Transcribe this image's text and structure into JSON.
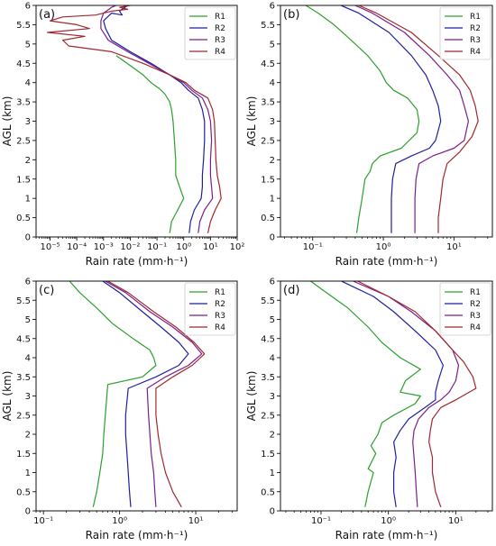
{
  "chart_data": [
    {
      "type": "line",
      "panel_label": "(a)",
      "xlabel": "Rain rate (mm·h⁻¹)",
      "ylabel": "AGL (km)",
      "xscale": "log",
      "xlim": [
        3e-06,
        100
      ],
      "ylim": [
        0,
        6
      ],
      "x_ticks": [
        1e-05,
        0.0001,
        0.001,
        0.01,
        0.1,
        1,
        10,
        100
      ],
      "x_tick_labels": [
        "10⁻⁵",
        "10⁻⁴",
        "10⁻³",
        "10⁻²",
        "10⁻¹",
        "10⁰",
        "10¹",
        "10²"
      ],
      "y_ticks": [
        0,
        0.5,
        1,
        1.5,
        2,
        2.5,
        3,
        3.5,
        4,
        4.5,
        5,
        5.5,
        6
      ],
      "y_tick_labels": [
        "0",
        "0.5",
        "1",
        "1.5",
        "2",
        "2.5",
        "3",
        "3.5",
        "4",
        "4.5",
        "5",
        "5.5",
        "6"
      ],
      "legend_position": "top-right",
      "series": [
        {
          "name": "R1",
          "color": "#2ca02c",
          "x": [
            0.3,
            0.35,
            0.6,
            1.0,
            0.7,
            0.5,
            0.5,
            0.45,
            0.4,
            0.35,
            0.3,
            0.2,
            0.12,
            0.06,
            0.03,
            0.012,
            0.006,
            0.003
          ],
          "y": [
            0.1,
            0.4,
            0.7,
            1.0,
            1.3,
            1.6,
            2.0,
            2.5,
            3.0,
            3.3,
            3.5,
            3.7,
            3.85,
            4.0,
            4.2,
            4.4,
            4.55,
            4.7
          ]
        },
        {
          "name": "R2",
          "color": "#1f1fa0",
          "x": [
            1.6,
            1.8,
            2.5,
            4.5,
            5.0,
            5.0,
            5.5,
            6.0,
            6.0,
            5.0,
            3.5,
            1.5,
            0.8,
            0.3,
            0.06,
            0.01,
            0.002,
            0.0012,
            0.001,
            0.002,
            0.005,
            0.004,
            0.006,
            0.008,
            0.005
          ],
          "y": [
            0.1,
            0.4,
            0.7,
            1.0,
            1.3,
            1.6,
            2.0,
            2.5,
            3.0,
            3.3,
            3.6,
            3.8,
            4.0,
            4.2,
            4.5,
            4.8,
            5.1,
            5.4,
            5.6,
            5.8,
            5.75,
            5.85,
            5.95,
            6.0,
            5.9
          ]
        },
        {
          "name": "R3",
          "color": "#7a1f8a",
          "x": [
            3.5,
            4.0,
            6.0,
            12.0,
            11.0,
            10.0,
            10.0,
            11.0,
            10.0,
            8.0,
            5.0,
            2.0,
            1.0,
            0.3,
            0.05,
            0.008,
            0.0015,
            0.0008,
            0.0008,
            0.001,
            0.002,
            0.003
          ],
          "y": [
            0.1,
            0.4,
            0.7,
            1.0,
            1.3,
            1.6,
            2.0,
            2.5,
            3.0,
            3.3,
            3.6,
            3.8,
            4.0,
            4.2,
            4.5,
            4.8,
            5.1,
            5.4,
            5.6,
            5.8,
            5.95,
            6.0
          ]
        },
        {
          "name": "R4",
          "color": "#a0282e",
          "x": [
            8,
            10,
            15,
            25,
            22,
            18,
            16,
            15,
            14,
            12,
            8,
            2.5,
            1.2,
            0.3,
            0.03,
            0.002,
            5e-05,
            3e-05,
            0.0002,
            8e-06,
            0.0003,
            0.0001,
            1e-05,
            3e-05,
            0.0005,
            0.002,
            0.008,
            0.004,
            0.01
          ],
          "y": [
            0.1,
            0.4,
            0.7,
            1.0,
            1.3,
            1.6,
            2.0,
            2.5,
            3.0,
            3.3,
            3.6,
            3.8,
            4.0,
            4.2,
            4.5,
            4.8,
            4.95,
            5.1,
            5.2,
            5.3,
            5.4,
            5.5,
            5.6,
            5.7,
            5.75,
            5.85,
            5.9,
            5.95,
            6.0
          ]
        }
      ]
    },
    {
      "type": "line",
      "panel_label": "(b)",
      "xlabel": "Rain rate (mm·h⁻¹)",
      "ylabel": "AGL (km)",
      "xscale": "log",
      "xlim": [
        0.035,
        35
      ],
      "ylim": [
        0,
        6
      ],
      "x_ticks": [
        0.1,
        1,
        10
      ],
      "x_tick_labels": [
        "10⁻¹",
        "10⁰",
        "10¹"
      ],
      "y_ticks": [
        0,
        0.5,
        1,
        1.5,
        2,
        2.5,
        3,
        3.5,
        4,
        4.5,
        5,
        5.5,
        6
      ],
      "y_tick_labels": [
        "0",
        "0.5",
        "1",
        "1.5",
        "2",
        "2.5",
        "3",
        "3.5",
        "4",
        "4.5",
        "5",
        "5.5",
        "6"
      ],
      "legend_position": "top-right",
      "series": [
        {
          "name": "R1",
          "color": "#2ca02c",
          "x": [
            0.42,
            0.45,
            0.5,
            0.55,
            0.65,
            0.7,
            0.9,
            1.8,
            3.0,
            3.2,
            3.0,
            2.2,
            1.4,
            1.1,
            0.9,
            0.6,
            0.35,
            0.2,
            0.12,
            0.08
          ],
          "y": [
            0.1,
            0.5,
            1.0,
            1.5,
            1.7,
            1.9,
            2.1,
            2.3,
            2.7,
            3.0,
            3.3,
            3.6,
            3.8,
            4.0,
            4.3,
            4.7,
            5.1,
            5.5,
            5.8,
            6.0
          ]
        },
        {
          "name": "R2",
          "color": "#1f1fa0",
          "x": [
            1.3,
            1.3,
            1.3,
            1.35,
            1.5,
            2.5,
            4.5,
            5.5,
            6.5,
            6.0,
            5.0,
            4.0,
            2.5,
            1.2,
            0.45,
            0.25
          ],
          "y": [
            0.1,
            0.5,
            1.0,
            1.5,
            1.9,
            2.1,
            2.3,
            2.5,
            3.0,
            3.4,
            3.8,
            4.2,
            4.7,
            5.3,
            5.8,
            6.0
          ]
        },
        {
          "name": "R3",
          "color": "#7a1f8a",
          "x": [
            2.8,
            2.8,
            2.8,
            2.9,
            3.2,
            5.0,
            10.0,
            14.0,
            16.0,
            14.0,
            12.0,
            8.0,
            4.5,
            2.0,
            0.7,
            0.4
          ],
          "y": [
            0.1,
            0.5,
            1.0,
            1.5,
            1.9,
            2.1,
            2.3,
            2.5,
            3.0,
            3.4,
            3.8,
            4.2,
            4.7,
            5.3,
            5.8,
            6.0
          ]
        },
        {
          "name": "R4",
          "color": "#a0282e",
          "x": [
            6.0,
            6.0,
            6.5,
            7.0,
            8.0,
            12.0,
            18.0,
            22.0,
            20.0,
            17.0,
            12.0,
            6.0,
            2.5,
            0.8,
            0.45
          ],
          "y": [
            0.1,
            0.5,
            1.0,
            1.5,
            1.9,
            2.2,
            2.6,
            3.0,
            3.4,
            3.8,
            4.2,
            4.7,
            5.3,
            5.8,
            6.0
          ]
        }
      ]
    },
    {
      "type": "line",
      "panel_label": "(c)",
      "xlabel": "Rain rate (mm·h⁻¹)",
      "ylabel": "AGL (km)",
      "xscale": "log",
      "xlim": [
        0.08,
        35
      ],
      "ylim": [
        0,
        6
      ],
      "x_ticks": [
        0.1,
        1,
        10
      ],
      "x_tick_labels": [
        "10⁻¹",
        "10⁰",
        "10¹"
      ],
      "y_ticks": [
        0,
        0.5,
        1,
        1.5,
        2,
        2.5,
        3,
        3.5,
        4,
        4.5,
        5,
        5.5,
        6
      ],
      "y_tick_labels": [
        "0",
        "0.5",
        "1",
        "1.5",
        "2",
        "2.5",
        "3",
        "3.5",
        "4",
        "4.5",
        "5",
        "5.5",
        "6"
      ],
      "legend_position": "top-right",
      "series": [
        {
          "name": "R1",
          "color": "#2ca02c",
          "x": [
            0.45,
            0.5,
            0.55,
            0.6,
            0.62,
            0.65,
            0.7,
            2.0,
            3.0,
            2.8,
            2.5,
            1.5,
            0.8,
            0.5,
            0.3,
            0.22
          ],
          "y": [
            0.1,
            0.5,
            1.0,
            1.5,
            2.0,
            2.5,
            3.3,
            3.5,
            3.8,
            4.0,
            4.2,
            4.5,
            4.9,
            5.3,
            5.7,
            6.0
          ]
        },
        {
          "name": "R2",
          "color": "#1f1fa0",
          "x": [
            1.4,
            1.35,
            1.3,
            1.25,
            1.2,
            1.2,
            1.3,
            3.0,
            6.0,
            8.0,
            6.0,
            3.5,
            2.0,
            1.0,
            0.6
          ],
          "y": [
            0.1,
            0.5,
            1.0,
            1.5,
            2.0,
            2.5,
            3.2,
            3.5,
            3.8,
            4.1,
            4.4,
            4.8,
            5.2,
            5.7,
            6.0
          ]
        },
        {
          "name": "R3",
          "color": "#7a1f8a",
          "x": [
            3.0,
            2.9,
            2.8,
            2.6,
            2.5,
            2.4,
            2.3,
            4.0,
            8.0,
            12.0,
            9.0,
            5.0,
            2.5,
            1.2,
            0.65
          ],
          "y": [
            0.1,
            0.5,
            1.0,
            1.5,
            2.0,
            2.5,
            3.2,
            3.5,
            3.8,
            4.1,
            4.4,
            4.8,
            5.2,
            5.7,
            6.0
          ]
        },
        {
          "name": "R4",
          "color": "#a0282e",
          "x": [
            6.5,
            5.0,
            4.0,
            3.5,
            3.2,
            3.0,
            3.0,
            5.0,
            9.0,
            13.0,
            9.5,
            5.5,
            2.8,
            1.3,
            0.7
          ],
          "y": [
            0.1,
            0.5,
            1.0,
            1.5,
            2.0,
            2.5,
            3.2,
            3.5,
            3.8,
            4.1,
            4.4,
            4.8,
            5.2,
            5.7,
            6.0
          ]
        }
      ]
    },
    {
      "type": "line",
      "panel_label": "(d)",
      "xlabel": "Rain rate (mm·h⁻¹)",
      "ylabel": "AGL (km)",
      "xscale": "log",
      "xlim": [
        0.025,
        35
      ],
      "ylim": [
        0,
        6
      ],
      "x_ticks": [
        0.1,
        1,
        10
      ],
      "x_tick_labels": [
        "10⁻¹",
        "10⁰",
        "10¹"
      ],
      "y_ticks": [
        0,
        0.5,
        1,
        1.5,
        2,
        2.5,
        3,
        3.5,
        4,
        4.5,
        5,
        5.5,
        6
      ],
      "y_tick_labels": [
        "0",
        "0.5",
        "1",
        "1.5",
        "2",
        "2.5",
        "3",
        "3.5",
        "4",
        "4.5",
        "5",
        "5.5",
        "6"
      ],
      "legend_position": "top-right",
      "series": [
        {
          "name": "R1",
          "color": "#2ca02c",
          "x": [
            0.45,
            0.5,
            0.6,
            0.5,
            0.65,
            0.55,
            0.7,
            0.8,
            1.2,
            2.5,
            3.0,
            1.5,
            1.8,
            3.0,
            1.5,
            0.8,
            0.5,
            0.25,
            0.12,
            0.07
          ],
          "y": [
            0.1,
            0.5,
            1.0,
            1.1,
            1.5,
            1.7,
            2.0,
            2.3,
            2.5,
            2.8,
            3.0,
            3.1,
            3.4,
            3.7,
            4.0,
            4.4,
            4.8,
            5.3,
            5.7,
            6.0
          ]
        },
        {
          "name": "R2",
          "color": "#1f1fa0",
          "x": [
            1.3,
            1.2,
            1.2,
            1.3,
            1.2,
            1.5,
            2.0,
            3.5,
            5.0,
            5.0,
            5.5,
            6.5,
            5.0,
            2.5,
            1.2,
            0.6,
            0.2
          ],
          "y": [
            0.1,
            0.5,
            1.0,
            1.4,
            1.8,
            2.1,
            2.4,
            2.7,
            2.9,
            3.1,
            3.4,
            3.8,
            4.2,
            4.7,
            5.2,
            5.6,
            6.0
          ]
        },
        {
          "name": "R3",
          "color": "#7a1f8a",
          "x": [
            2.7,
            2.6,
            2.5,
            2.4,
            2.3,
            2.4,
            2.8,
            4.0,
            6.0,
            8.0,
            10.0,
            11.0,
            9.0,
            5.0,
            2.2,
            1.0,
            0.3
          ],
          "y": [
            0.1,
            0.5,
            1.0,
            1.4,
            1.8,
            2.1,
            2.4,
            2.7,
            2.9,
            3.1,
            3.4,
            3.8,
            4.2,
            4.7,
            5.2,
            5.6,
            6.0
          ]
        },
        {
          "name": "R4",
          "color": "#a0282e",
          "x": [
            6.0,
            5.0,
            4.5,
            4.5,
            4.0,
            4.2,
            4.5,
            6.0,
            10.0,
            20.0,
            18.0,
            13.0,
            9.0,
            5.0,
            2.5,
            1.0,
            0.35
          ],
          "y": [
            0.1,
            0.5,
            1.0,
            1.4,
            1.8,
            2.1,
            2.4,
            2.7,
            2.9,
            3.2,
            3.5,
            3.9,
            4.2,
            4.7,
            5.2,
            5.6,
            6.0
          ]
        }
      ]
    }
  ]
}
